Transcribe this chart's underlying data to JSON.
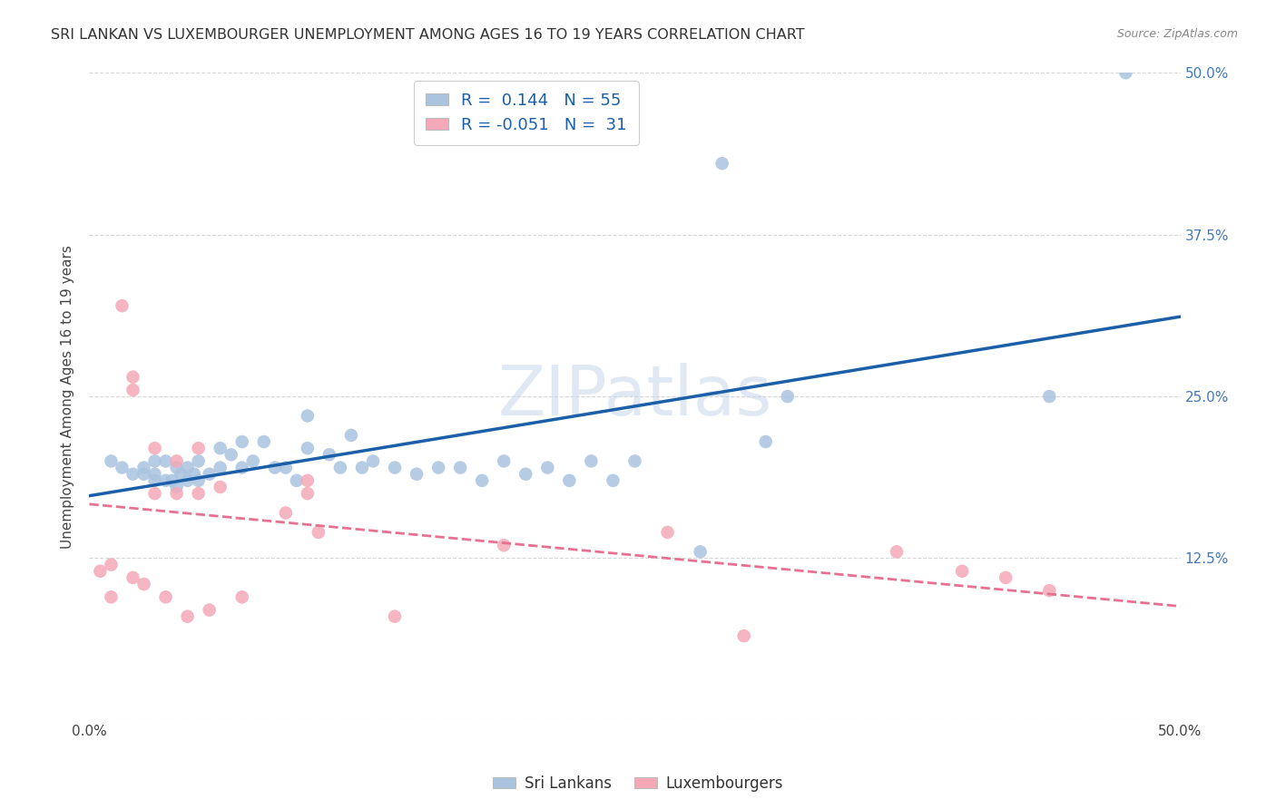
{
  "title": "SRI LANKAN VS LUXEMBOURGER UNEMPLOYMENT AMONG AGES 16 TO 19 YEARS CORRELATION CHART",
  "source": "Source: ZipAtlas.com",
  "ylabel": "Unemployment Among Ages 16 to 19 years",
  "xlim": [
    0.0,
    0.5
  ],
  "ylim": [
    0.0,
    0.5
  ],
  "xticks": [
    0.0,
    0.0625,
    0.125,
    0.1875,
    0.25,
    0.3125,
    0.375,
    0.4375,
    0.5
  ],
  "xticklabels": [
    "0.0%",
    "",
    "",
    "",
    "",
    "",
    "",
    "",
    "50.0%"
  ],
  "yticks": [
    0.0,
    0.125,
    0.25,
    0.375,
    0.5
  ],
  "right_yticklabels": [
    "",
    "12.5%",
    "25.0%",
    "37.5%",
    "50.0%"
  ],
  "sri_lankans_color": "#aac4e0",
  "luxembourgers_color": "#f4a8b8",
  "sri_lankans_line_color": "#1a5fa8",
  "luxembourgers_line_color": "#e87090",
  "background_color": "#ffffff",
  "watermark": "ZIPatlas",
  "legend_sri_r": "0.144",
  "legend_sri_n": "55",
  "legend_lux_r": "-0.051",
  "legend_lux_n": "31",
  "sri_lankans_x": [
    0.01,
    0.015,
    0.02,
    0.025,
    0.025,
    0.03,
    0.03,
    0.03,
    0.035,
    0.035,
    0.038,
    0.04,
    0.04,
    0.042,
    0.045,
    0.045,
    0.048,
    0.05,
    0.05,
    0.055,
    0.06,
    0.06,
    0.065,
    0.07,
    0.07,
    0.075,
    0.08,
    0.085,
    0.09,
    0.095,
    0.1,
    0.1,
    0.11,
    0.115,
    0.12,
    0.125,
    0.13,
    0.14,
    0.15,
    0.16,
    0.17,
    0.18,
    0.19,
    0.2,
    0.21,
    0.22,
    0.23,
    0.24,
    0.25,
    0.28,
    0.29,
    0.31,
    0.32,
    0.44,
    0.475
  ],
  "sri_lankans_y": [
    0.2,
    0.195,
    0.19,
    0.195,
    0.19,
    0.2,
    0.19,
    0.185,
    0.2,
    0.185,
    0.185,
    0.195,
    0.18,
    0.19,
    0.195,
    0.185,
    0.19,
    0.2,
    0.185,
    0.19,
    0.21,
    0.195,
    0.205,
    0.215,
    0.195,
    0.2,
    0.215,
    0.195,
    0.195,
    0.185,
    0.235,
    0.21,
    0.205,
    0.195,
    0.22,
    0.195,
    0.2,
    0.195,
    0.19,
    0.195,
    0.195,
    0.185,
    0.2,
    0.19,
    0.195,
    0.185,
    0.2,
    0.185,
    0.2,
    0.13,
    0.43,
    0.215,
    0.25,
    0.25,
    0.5
  ],
  "luxembourgers_x": [
    0.005,
    0.01,
    0.01,
    0.015,
    0.02,
    0.02,
    0.02,
    0.025,
    0.03,
    0.03,
    0.035,
    0.04,
    0.04,
    0.045,
    0.05,
    0.05,
    0.055,
    0.06,
    0.07,
    0.09,
    0.1,
    0.1,
    0.105,
    0.14,
    0.19,
    0.265,
    0.3,
    0.37,
    0.4,
    0.42,
    0.44
  ],
  "luxembourgers_y": [
    0.115,
    0.12,
    0.095,
    0.32,
    0.265,
    0.255,
    0.11,
    0.105,
    0.21,
    0.175,
    0.095,
    0.2,
    0.175,
    0.08,
    0.21,
    0.175,
    0.085,
    0.18,
    0.095,
    0.16,
    0.185,
    0.175,
    0.145,
    0.08,
    0.135,
    0.145,
    0.065,
    0.13,
    0.115,
    0.11,
    0.1
  ]
}
